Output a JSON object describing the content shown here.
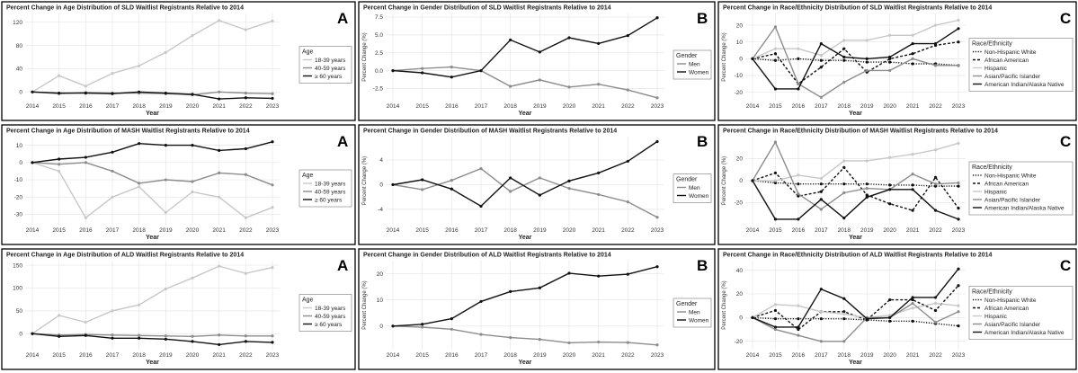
{
  "colors": {
    "black": "#111111",
    "gray": "#8c8c8c",
    "lightgray": "#c8c8c8",
    "grid": "#e6e6e6",
    "border": "#000000"
  },
  "chart_data": [
    {
      "type": "line",
      "title": "Percent Change in Age Distribution of SLD Waitlist Registrants Relative to 2014",
      "panel_letter": "A",
      "xlabel": "Year",
      "ylabel": "",
      "x": [
        2014,
        2015,
        2016,
        2017,
        2018,
        2019,
        2020,
        2021,
        2022,
        2023
      ],
      "ylim": [
        -15,
        135
      ],
      "yticks": [
        0,
        40,
        80,
        120
      ],
      "legend_title": "Age",
      "series": [
        {
          "name": "18-39 years",
          "color": "lightgray",
          "dash": "",
          "values": [
            0,
            28,
            10,
            32,
            45,
            68,
            97,
            123,
            107,
            122
          ]
        },
        {
          "name": "40-59 years",
          "color": "gray",
          "dash": "",
          "values": [
            0,
            -3,
            -1,
            -2,
            -2,
            -3,
            -5,
            0,
            -2,
            -3
          ]
        },
        {
          "name": "≥ 60 years",
          "color": "black",
          "dash": "",
          "values": [
            0,
            -2,
            -2,
            -3,
            0,
            -2,
            -4,
            -12,
            -10,
            -11
          ]
        }
      ]
    },
    {
      "type": "line",
      "title": "Percent Change in Gender Distribution of SLD Waitlist Registrants Relative to 2014",
      "panel_letter": "B",
      "xlabel": "Year",
      "ylabel": "Percent Change (%)",
      "x": [
        2014,
        2015,
        2016,
        2017,
        2018,
        2019,
        2020,
        2021,
        2022,
        2023
      ],
      "ylim": [
        -4.2,
        8
      ],
      "yticks": [
        -2.5,
        0.0,
        2.5,
        5.0,
        7.5
      ],
      "tick_labels": [
        "-2.5",
        "0.0",
        "2.5",
        "5.0",
        "7.5"
      ],
      "legend_title": "Gender",
      "series": [
        {
          "name": "Men",
          "color": "gray",
          "dash": "",
          "values": [
            0,
            0.3,
            0.5,
            0,
            -2.2,
            -1.3,
            -2.3,
            -1.9,
            -2.7,
            -3.8
          ]
        },
        {
          "name": "Women",
          "color": "black",
          "dash": "",
          "values": [
            0,
            -0.3,
            -0.9,
            0,
            4.3,
            2.6,
            4.6,
            3.8,
            4.9,
            7.4
          ]
        }
      ]
    },
    {
      "type": "line",
      "title": "Percent Change in Race/Ethnicity Distribution of SLD Waitlist Registrants Relative to 2014",
      "panel_letter": "C",
      "xlabel": "Year",
      "ylabel": "Percent Change (%)",
      "x": [
        2014,
        2015,
        2016,
        2017,
        2018,
        2019,
        2020,
        2021,
        2022,
        2023
      ],
      "ylim": [
        -25,
        27
      ],
      "yticks": [
        -20,
        -10,
        0,
        10,
        20
      ],
      "legend_title": "Race/Ethnicity",
      "series": [
        {
          "name": "Non-Hispanic White",
          "color": "black",
          "dash": "1.2,1.6",
          "values": [
            0,
            -1,
            0,
            -1,
            -1,
            -2,
            -2,
            -3,
            -3,
            -4
          ]
        },
        {
          "name": "African American",
          "color": "black",
          "dash": "3,2",
          "values": [
            0,
            3,
            -15,
            -5,
            6,
            -8,
            0,
            3,
            8,
            10
          ]
        },
        {
          "name": "Hispanic",
          "color": "lightgray",
          "dash": "",
          "values": [
            0,
            6,
            6,
            2,
            11,
            11,
            14,
            14,
            20,
            23
          ]
        },
        {
          "name": "Asian/Pacific Islander",
          "color": "gray",
          "dash": "",
          "values": [
            0,
            19,
            -15,
            -23,
            -14,
            -7,
            -7,
            0,
            -4,
            -4
          ]
        },
        {
          "name": "American Indian/Alaska Native",
          "color": "black",
          "dash": "",
          "values": [
            0,
            -18,
            -18,
            9,
            1,
            0,
            1,
            9,
            9,
            18
          ]
        }
      ]
    },
    {
      "type": "line",
      "title": "Percent Change in Age Distribution of MASH Waitlist Registrants Relative to 2014",
      "panel_letter": "A",
      "xlabel": "Year",
      "ylabel": "",
      "x": [
        2014,
        2015,
        2016,
        2017,
        2018,
        2019,
        2020,
        2021,
        2022,
        2023
      ],
      "ylim": [
        -36,
        15
      ],
      "yticks": [
        -30,
        -20,
        -10,
        0,
        10
      ],
      "legend_title": "Age",
      "series": [
        {
          "name": "18-39 years",
          "color": "lightgray",
          "dash": "",
          "values": [
            0,
            -5,
            -32,
            -20,
            -14,
            -29,
            -17,
            -20,
            -32,
            -26
          ]
        },
        {
          "name": "40-59 years",
          "color": "gray",
          "dash": "",
          "values": [
            0,
            -1,
            0,
            -5,
            -12,
            -10,
            -11,
            -6,
            -7,
            -13
          ]
        },
        {
          "name": "≥ 60 years",
          "color": "black",
          "dash": "",
          "values": [
            0,
            2,
            3,
            6,
            11,
            10,
            10,
            7,
            8,
            12
          ]
        }
      ]
    },
    {
      "type": "line",
      "title": "Percent Change in Gender Distribution of MASH Waitlist Registrants Relative to 2014",
      "panel_letter": "B",
      "xlabel": "Year",
      "ylabel": "Percent Change (%)",
      "x": [
        2014,
        2015,
        2016,
        2017,
        2018,
        2019,
        2020,
        2021,
        2022,
        2023
      ],
      "ylim": [
        -6.5,
        7.8
      ],
      "yticks": [
        -4,
        0,
        4
      ],
      "tick_labels": [
        "-4",
        "0",
        "4"
      ],
      "legend_title": "Gender",
      "series": [
        {
          "name": "Men",
          "color": "gray",
          "dash": "",
          "values": [
            0,
            -0.8,
            0.7,
            2.6,
            -1.1,
            1.1,
            -0.6,
            -1.6,
            -2.8,
            -5.3
          ]
        },
        {
          "name": "Women",
          "color": "black",
          "dash": "",
          "values": [
            0,
            0.8,
            -0.7,
            -3.5,
            1.1,
            -1.7,
            0.6,
            1.9,
            3.8,
            7.0
          ]
        }
      ]
    },
    {
      "type": "line",
      "title": "Percent Change in Race/Ethnicity Distribution of MASH Waitlist Registrants Relative to 2014",
      "panel_letter": "C",
      "xlabel": "Year",
      "ylabel": "Percent Change (%)",
      "x": [
        2014,
        2015,
        2016,
        2017,
        2018,
        2019,
        2020,
        2021,
        2022,
        2023
      ],
      "ylim": [
        -40,
        40
      ],
      "yticks": [
        -20,
        0,
        20
      ],
      "legend_title": "Race/Ethnicity",
      "series": [
        {
          "name": "Non-Hispanic White",
          "color": "black",
          "dash": "1.2,1.6",
          "values": [
            0,
            -2,
            -3,
            -3,
            -3,
            -3,
            -4,
            -4,
            -5,
            -5
          ]
        },
        {
          "name": "African American",
          "color": "black",
          "dash": "3,2",
          "values": [
            0,
            7,
            -14,
            -10,
            12,
            -13,
            -21,
            -27,
            3,
            -25
          ]
        },
        {
          "name": "Hispanic",
          "color": "lightgray",
          "dash": "",
          "values": [
            0,
            0,
            5,
            2,
            18,
            18,
            21,
            24,
            28,
            34
          ]
        },
        {
          "name": "Asian/Pacific Islander",
          "color": "gray",
          "dash": "",
          "values": [
            0,
            35,
            -12,
            -26,
            -11,
            -7,
            -8,
            6,
            -3,
            -2
          ]
        },
        {
          "name": "American Indian/Alaska Native",
          "color": "black",
          "dash": "",
          "values": [
            0,
            -35,
            -35,
            -17,
            -34,
            -15,
            -8,
            -8,
            -27,
            -35
          ]
        }
      ]
    },
    {
      "type": "line",
      "title": "Percent Change in Age Distribution of ALD Waitlist Registrants Relative to 2014",
      "panel_letter": "A",
      "xlabel": "Year",
      "ylabel": "",
      "x": [
        2014,
        2015,
        2016,
        2017,
        2018,
        2019,
        2020,
        2021,
        2022,
        2023
      ],
      "ylim": [
        -35,
        160
      ],
      "yticks": [
        0,
        50,
        100,
        150
      ],
      "legend_title": "Age",
      "series": [
        {
          "name": "18-39 years",
          "color": "lightgray",
          "dash": "",
          "values": [
            0,
            40,
            25,
            50,
            63,
            98,
            122,
            148,
            132,
            145
          ]
        },
        {
          "name": "40-59 years",
          "color": "gray",
          "dash": "",
          "values": [
            0,
            -3,
            -2,
            -3,
            -4,
            -5,
            -6,
            -3,
            -5,
            -5
          ]
        },
        {
          "name": "≥ 60 years",
          "color": "black",
          "dash": "",
          "values": [
            0,
            -6,
            -4,
            -10,
            -10,
            -12,
            -17,
            -24,
            -17,
            -19
          ]
        }
      ]
    },
    {
      "type": "line",
      "title": "Percent Change in Gender Distribution of ALD Waitlist Registrants Relative to 2014",
      "panel_letter": "B",
      "xlabel": "Year",
      "ylabel": "Percent Change (%)",
      "x": [
        2014,
        2015,
        2016,
        2017,
        2018,
        2019,
        2020,
        2021,
        2022,
        2023
      ],
      "ylim": [
        -9,
        25
      ],
      "yticks": [
        0,
        10,
        20
      ],
      "tick_labels": [
        "0",
        "10",
        "20"
      ],
      "legend_title": "Gender",
      "series": [
        {
          "name": "Men",
          "color": "gray",
          "dash": "",
          "values": [
            0,
            -0.4,
            -1.2,
            -3.2,
            -4.4,
            -5.1,
            -6.4,
            -6.1,
            -6.3,
            -7.2
          ]
        },
        {
          "name": "Women",
          "color": "black",
          "dash": "",
          "values": [
            0,
            0.7,
            2.8,
            9.4,
            13.2,
            14.6,
            20.2,
            19.1,
            19.8,
            22.7
          ]
        }
      ]
    },
    {
      "type": "line",
      "title": "Percent Change in Race/Ethnicity Distribution of ALD Waitlist Registrants Relative to 2014",
      "panel_letter": "C",
      "xlabel": "Year",
      "ylabel": "Percent Change (%)",
      "x": [
        2014,
        2015,
        2016,
        2017,
        2018,
        2019,
        2020,
        2021,
        2022,
        2023
      ],
      "ylim": [
        -27,
        48
      ],
      "yticks": [
        -20,
        0,
        20,
        40
      ],
      "legend_title": "Race/Ethnicity",
      "series": [
        {
          "name": "Non-Hispanic White",
          "color": "black",
          "dash": "1.2,1.6",
          "values": [
            0,
            -1,
            -1,
            -1,
            -1,
            -2,
            -3,
            -3,
            -5,
            -7
          ]
        },
        {
          "name": "African American",
          "color": "black",
          "dash": "3,2",
          "values": [
            0,
            6,
            -10,
            5,
            5,
            -2,
            15,
            15,
            6,
            27
          ]
        },
        {
          "name": "Hispanic",
          "color": "lightgray",
          "dash": "",
          "values": [
            0,
            11,
            10,
            5,
            3,
            0,
            2,
            8,
            12,
            10
          ]
        },
        {
          "name": "Asian/Pacific Islander",
          "color": "gray",
          "dash": "",
          "values": [
            0,
            -10,
            -15,
            -20,
            -20,
            0,
            0,
            12,
            -4,
            5
          ]
        },
        {
          "name": "American Indian/Alaska Native",
          "color": "black",
          "dash": "",
          "values": [
            0,
            -8,
            -8,
            24,
            16,
            -1,
            0,
            17,
            17,
            41
          ]
        }
      ]
    }
  ]
}
